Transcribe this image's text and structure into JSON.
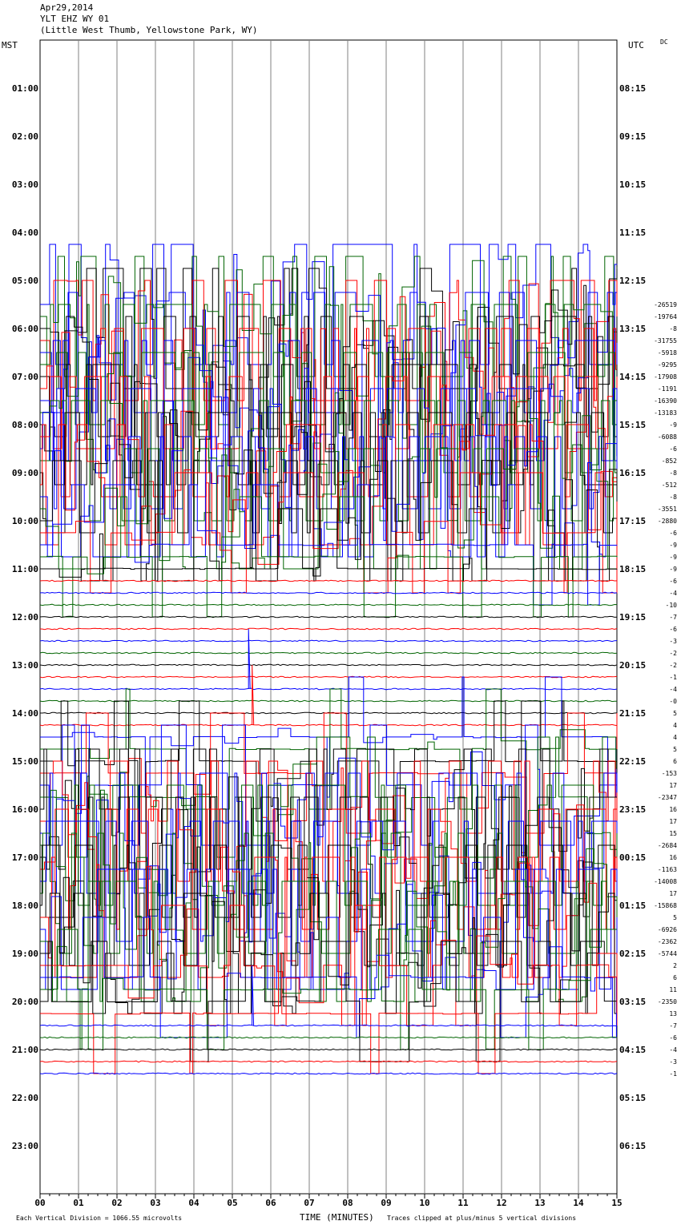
{
  "header": {
    "date": "Apr29,2014",
    "station": "YLT EHZ WY 01",
    "location": "(Little West Thumb, Yellowstone Park, WY)"
  },
  "left_axis_label": "MST",
  "right_axis_label": "UTC",
  "corner_tag": "DC",
  "footer": {
    "scale_note": "Each Vertical Division = 1066.55 microvolts",
    "xlabel": "TIME (MINUTES)",
    "clip_note": "Traces clipped at plus/minus 5 vertical divisions"
  },
  "colors": {
    "trace_cycle": [
      "#000000",
      "#ff0000",
      "#0000ff",
      "#006400"
    ],
    "grid": "#808080"
  },
  "chart_data": {
    "type": "line",
    "title": "YLT EHZ WY 01",
    "xlabel": "TIME (MINUTES)",
    "xlim": [
      0,
      15
    ],
    "x_ticks": [
      "00",
      "01",
      "02",
      "03",
      "04",
      "05",
      "06",
      "07",
      "08",
      "09",
      "10",
      "11",
      "12",
      "13",
      "14",
      "15"
    ],
    "left_hour_labels": [
      "01:00",
      "02:00",
      "03:00",
      "04:00",
      "05:00",
      "06:00",
      "07:00",
      "08:00",
      "09:00",
      "10:00",
      "11:00",
      "12:00",
      "13:00",
      "14:00",
      "15:00",
      "16:00",
      "17:00",
      "18:00",
      "19:00",
      "20:00",
      "21:00",
      "22:00",
      "23:00"
    ],
    "right_hour_labels": [
      "08:15",
      "09:15",
      "10:15",
      "11:15",
      "12:15",
      "13:15",
      "14:15",
      "15:15",
      "16:15",
      "17:15",
      "18:15",
      "19:15",
      "20:15",
      "21:15",
      "22:15",
      "23:15",
      "00:15",
      "01:15",
      "02:15",
      "03:15",
      "04:15",
      "05:15",
      "06:15"
    ],
    "first_trace_index": 22,
    "trace_offsets": [
      "-26519",
      "-19764",
      "-8",
      "-31755",
      "-5918",
      "-9295",
      "-17908",
      "-1191",
      "-16390",
      "-13183",
      "-9",
      "-6088",
      "-6",
      "-852",
      "-8",
      "-512",
      "-8",
      "-3551",
      "-2880",
      "-6",
      "-9",
      "-9",
      "-9",
      "-6",
      "-4",
      "-10",
      "-7",
      "-6",
      "-3",
      "-2",
      "-2",
      "-1",
      "-4",
      "-0",
      "5",
      "4",
      "4",
      "5",
      "6",
      "-153",
      "17",
      "-2347",
      "16",
      "17",
      "15",
      "-2684",
      "16",
      "-1163",
      "-14008",
      "17",
      "-15868",
      "5",
      "-6926",
      "-2362",
      "-5744",
      "2",
      "6",
      "11",
      "-2350",
      "13",
      "-7",
      "-6",
      "-4",
      "-3",
      "-1"
    ],
    "trace_activity": [
      9,
      9,
      9,
      9,
      9,
      9,
      9,
      9,
      9,
      9,
      9,
      9,
      9,
      9,
      9,
      9,
      9,
      9,
      9,
      6,
      4,
      3,
      2,
      0,
      0,
      0,
      0,
      0,
      0,
      0,
      0,
      0,
      1,
      0,
      0,
      1,
      2,
      3,
      3,
      4,
      5,
      6,
      7,
      8,
      9,
      9,
      9,
      9,
      9,
      9,
      9,
      9,
      9,
      9,
      8,
      6,
      5,
      4,
      3,
      2,
      1,
      0,
      0,
      0,
      0
    ]
  }
}
